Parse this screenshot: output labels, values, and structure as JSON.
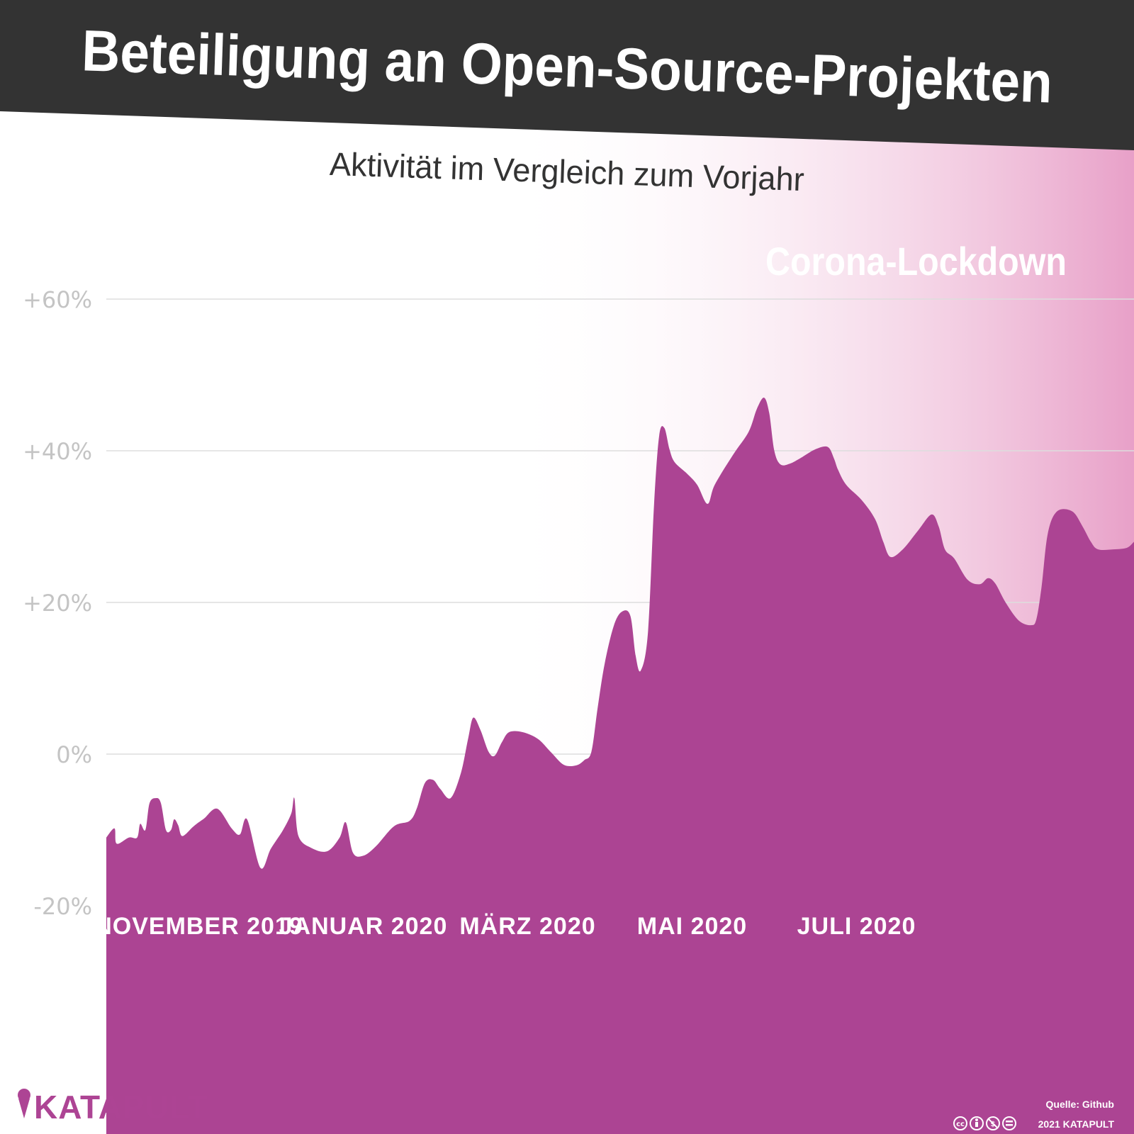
{
  "header": {
    "title": "Beteiligung an Open-Source-Projekten",
    "subtitle": "Aktivität im Vergleich zum Vorjahr"
  },
  "annotation": {
    "lockdown_label": "Corona-Lockdown"
  },
  "brand": {
    "name": "KATAPULT"
  },
  "footer": {
    "source": "Quelle: Github",
    "copyright": "2021 KATAPULT",
    "license_icons": [
      "cc-icon",
      "by-icon",
      "nc-icon",
      "nd-icon"
    ]
  },
  "colors": {
    "area": "#ac4493",
    "header_band": "#333333",
    "lockdown_gradient_end": "#e8a0c8",
    "tick_label": "#c4c4c4",
    "gridline": "#dddddd"
  },
  "chart_data": {
    "type": "area",
    "title": "Beteiligung an Open-Source-Projekten",
    "subtitle": "Aktivität im Vergleich zum Vorjahr",
    "xlabel": "",
    "ylabel": "",
    "ylim": [
      -20,
      60
    ],
    "y_ticks": [
      {
        "value": 60,
        "label": "+60%"
      },
      {
        "value": 40,
        "label": "+40%"
      },
      {
        "value": 20,
        "label": "+20%"
      },
      {
        "value": 0,
        "label": "0%"
      },
      {
        "value": -20,
        "label": "-20%"
      }
    ],
    "x_ticks": [
      {
        "x": 0.09,
        "label": "NOVEMBER 2019"
      },
      {
        "x": 0.25,
        "label": "JANUAR 2020"
      },
      {
        "x": 0.41,
        "label": "MÄRZ 2020"
      },
      {
        "x": 0.57,
        "label": "MAI 2020"
      },
      {
        "x": 0.73,
        "label": "JULI 2020"
      }
    ],
    "grid": true,
    "legend": "none",
    "annotations": [
      {
        "label": "Corona-Lockdown",
        "x_start": 0.385,
        "x_end": 1.0
      }
    ],
    "series": [
      {
        "values": [
          [
            0.0,
            -11.0
          ],
          [
            0.008,
            -9.8
          ],
          [
            0.01,
            -11.8
          ],
          [
            0.022,
            -11.0
          ],
          [
            0.03,
            -11.0
          ],
          [
            0.033,
            -9.2
          ],
          [
            0.038,
            -10.0
          ],
          [
            0.042,
            -6.5
          ],
          [
            0.048,
            -5.8
          ],
          [
            0.053,
            -6.4
          ],
          [
            0.058,
            -10.0
          ],
          [
            0.063,
            -10.0
          ],
          [
            0.066,
            -8.6
          ],
          [
            0.07,
            -9.4
          ],
          [
            0.074,
            -10.8
          ],
          [
            0.085,
            -9.5
          ],
          [
            0.095,
            -8.5
          ],
          [
            0.108,
            -7.2
          ],
          [
            0.122,
            -9.8
          ],
          [
            0.13,
            -10.6
          ],
          [
            0.137,
            -8.6
          ],
          [
            0.15,
            -15.0
          ],
          [
            0.16,
            -12.5
          ],
          [
            0.172,
            -10.0
          ],
          [
            0.18,
            -7.8
          ],
          [
            0.183,
            -5.8
          ],
          [
            0.187,
            -10.8
          ],
          [
            0.2,
            -12.4
          ],
          [
            0.215,
            -12.8
          ],
          [
            0.227,
            -11.0
          ],
          [
            0.233,
            -9.0
          ],
          [
            0.24,
            -13.0
          ],
          [
            0.25,
            -13.4
          ],
          [
            0.262,
            -12.2
          ],
          [
            0.28,
            -9.5
          ],
          [
            0.295,
            -8.8
          ],
          [
            0.302,
            -7.2
          ],
          [
            0.31,
            -3.8
          ],
          [
            0.318,
            -3.4
          ],
          [
            0.325,
            -4.6
          ],
          [
            0.335,
            -5.8
          ],
          [
            0.345,
            -2.5
          ],
          [
            0.352,
            2.0
          ],
          [
            0.357,
            4.8
          ],
          [
            0.364,
            3.2
          ],
          [
            0.372,
            0.3
          ],
          [
            0.378,
            -0.2
          ],
          [
            0.385,
            1.6
          ],
          [
            0.392,
            2.9
          ],
          [
            0.405,
            2.9
          ],
          [
            0.42,
            2.0
          ],
          [
            0.433,
            0.2
          ],
          [
            0.445,
            -1.4
          ],
          [
            0.457,
            -1.5
          ],
          [
            0.465,
            -0.8
          ],
          [
            0.472,
            0.3
          ],
          [
            0.478,
            6.0
          ],
          [
            0.485,
            12.0
          ],
          [
            0.494,
            17.0
          ],
          [
            0.502,
            18.8
          ],
          [
            0.51,
            18.2
          ],
          [
            0.515,
            13.0
          ],
          [
            0.52,
            11.0
          ],
          [
            0.527,
            16.0
          ],
          [
            0.533,
            33.0
          ],
          [
            0.538,
            42.0
          ],
          [
            0.543,
            43.0
          ],
          [
            0.548,
            40.2
          ],
          [
            0.553,
            38.5
          ],
          [
            0.565,
            37.0
          ],
          [
            0.575,
            35.5
          ],
          [
            0.585,
            33.0
          ],
          [
            0.592,
            35.5
          ],
          [
            0.61,
            39.5
          ],
          [
            0.625,
            42.5
          ],
          [
            0.633,
            45.5
          ],
          [
            0.64,
            47.0
          ],
          [
            0.645,
            45.0
          ],
          [
            0.65,
            40.0
          ],
          [
            0.656,
            38.2
          ],
          [
            0.665,
            38.3
          ],
          [
            0.675,
            39.0
          ],
          [
            0.69,
            40.2
          ],
          [
            0.702,
            40.5
          ],
          [
            0.708,
            39.0
          ],
          [
            0.712,
            37.5
          ],
          [
            0.72,
            35.5
          ],
          [
            0.735,
            33.5
          ],
          [
            0.748,
            31.0
          ],
          [
            0.756,
            28.0
          ],
          [
            0.763,
            26.0
          ],
          [
            0.775,
            27.0
          ],
          [
            0.79,
            29.5
          ],
          [
            0.803,
            31.6
          ],
          [
            0.81,
            30.0
          ],
          [
            0.816,
            27.0
          ],
          [
            0.825,
            25.8
          ],
          [
            0.838,
            23.0
          ],
          [
            0.85,
            22.4
          ],
          [
            0.858,
            23.2
          ],
          [
            0.865,
            22.5
          ],
          [
            0.875,
            20.0
          ],
          [
            0.888,
            17.6
          ],
          [
            0.9,
            17.0
          ],
          [
            0.905,
            17.8
          ],
          [
            0.91,
            22.0
          ],
          [
            0.916,
            29.0
          ],
          [
            0.925,
            32.0
          ],
          [
            0.94,
            32.0
          ],
          [
            0.95,
            30.0
          ],
          [
            0.958,
            28.0
          ],
          [
            0.965,
            27.0
          ],
          [
            0.98,
            27.0
          ],
          [
            0.993,
            27.2
          ],
          [
            1.0,
            28.0
          ]
        ]
      }
    ]
  }
}
